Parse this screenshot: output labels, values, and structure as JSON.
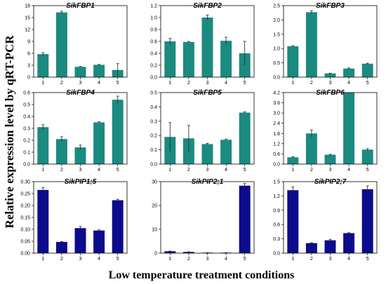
{
  "figure": {
    "ylabel": "Relative expression level by qRT-PCR",
    "xlabel": "Low temperature treatment conditions"
  },
  "colors": {
    "teal": "#1b8a80",
    "navy": "#0c0c8c",
    "error_bar": "#222222"
  },
  "chart_data": [
    {
      "type": "bar",
      "title": "SikFBP1",
      "categories": [
        "1",
        "2",
        "3",
        "4",
        "5"
      ],
      "values": [
        5.8,
        16.3,
        2.6,
        3.1,
        1.8
      ],
      "errors": [
        0.4,
        0.3,
        0.1,
        0.1,
        1.6
      ],
      "ylim": [
        0,
        18
      ],
      "yticks": [
        0,
        3,
        6,
        9,
        12,
        15,
        18
      ],
      "yticklabels": [
        "0",
        "3",
        "6",
        "9",
        "12",
        "15",
        "18"
      ],
      "color": "teal"
    },
    {
      "type": "bar",
      "title": "SikFBP2",
      "categories": [
        "1",
        "2",
        "3",
        "4",
        "5"
      ],
      "values": [
        0.6,
        0.59,
        1.0,
        0.61,
        0.4
      ],
      "errors": [
        0.05,
        0.01,
        0.04,
        0.06,
        0.2
      ],
      "ylim": [
        0,
        1.2
      ],
      "yticks": [
        0,
        0.2,
        0.4,
        0.6,
        0.8,
        1.0,
        1.2
      ],
      "yticklabels": [
        "0.0",
        "0.2",
        "0.4",
        "0.6",
        "0.8",
        "1.0",
        "1.2"
      ],
      "color": "teal"
    },
    {
      "type": "bar",
      "title": "SikFBP3",
      "categories": [
        "1",
        "2",
        "3",
        "4",
        "5"
      ],
      "values": [
        1.08,
        2.27,
        0.13,
        0.3,
        0.47
      ],
      "errors": [
        0.02,
        0.05,
        0.01,
        0.02,
        0.02
      ],
      "ylim": [
        0,
        2.5
      ],
      "yticks": [
        0,
        0.5,
        1.0,
        1.5,
        2.0,
        2.5
      ],
      "yticklabels": [
        "0.0",
        "0.5",
        "1.0",
        "1.5",
        "2.0",
        "2.5"
      ],
      "color": "teal"
    },
    {
      "type": "bar",
      "title": "SikFBP4",
      "categories": [
        "1",
        "2",
        "3",
        "4",
        "5"
      ],
      "values": [
        0.31,
        0.21,
        0.14,
        0.35,
        0.54
      ],
      "errors": [
        0.02,
        0.02,
        0.02,
        0.005,
        0.03
      ],
      "ylim": [
        0,
        0.6
      ],
      "yticks": [
        0,
        0.1,
        0.2,
        0.3,
        0.4,
        0.5,
        0.6
      ],
      "yticklabels": [
        "0.0",
        "0.1",
        "0.2",
        "0.3",
        "0.4",
        "0.5",
        "0.6"
      ],
      "color": "teal"
    },
    {
      "type": "bar",
      "title": "SikFBP5",
      "categories": [
        "1",
        "2",
        "3",
        "4",
        "5"
      ],
      "values": [
        0.19,
        0.18,
        0.14,
        0.17,
        0.36
      ],
      "errors": [
        0.1,
        0.09,
        0.005,
        0.005,
        0.005
      ],
      "ylim": [
        0,
        0.5
      ],
      "yticks": [
        0,
        0.1,
        0.2,
        0.3,
        0.4,
        0.5
      ],
      "yticklabels": [
        "0.0",
        "0.1",
        "0.2",
        "0.3",
        "0.4",
        "0.5"
      ],
      "color": "teal"
    },
    {
      "type": "bar",
      "title": "SikFBP6",
      "categories": [
        "1",
        "2",
        "3",
        "4",
        "5"
      ],
      "values": [
        0.4,
        1.8,
        0.55,
        4.2,
        0.85
      ],
      "errors": [
        0.04,
        0.2,
        0.02,
        0.0,
        0.06
      ],
      "ylim": [
        0,
        4.2
      ],
      "yticks": [
        0,
        0.6,
        1.2,
        1.8,
        2.4,
        3.0,
        3.6,
        4.2
      ],
      "yticklabels": [
        "0.0",
        "0.6",
        "1.2",
        "1.8",
        "2.4",
        "3.0",
        "3.6",
        "4.2"
      ],
      "color": "teal"
    },
    {
      "type": "bar",
      "title": "SikPIP1;5",
      "categories": [
        "1",
        "2",
        "3",
        "4",
        "5"
      ],
      "values": [
        0.265,
        0.047,
        0.105,
        0.095,
        0.222
      ],
      "errors": [
        0.01,
        0.002,
        0.007,
        0.003,
        0.004
      ],
      "ylim": [
        0,
        0.3
      ],
      "yticks": [
        0,
        0.05,
        0.1,
        0.15,
        0.2,
        0.25,
        0.3
      ],
      "yticklabels": [
        "0.00",
        "0.05",
        "0.10",
        "0.15",
        "0.20",
        "0.25",
        "0.30"
      ],
      "color": "navy"
    },
    {
      "type": "bar",
      "title": "SikPIP2;1",
      "categories": [
        "1",
        "2",
        "3",
        "4",
        "5"
      ],
      "values": [
        0.8,
        0.5,
        0.2,
        0.2,
        28.3
      ],
      "errors": [
        0.05,
        0.05,
        0.02,
        0.02,
        0.9
      ],
      "ylim": [
        0,
        30
      ],
      "yticks": [
        0,
        10,
        20,
        30
      ],
      "yticklabels": [
        "0",
        "10",
        "20",
        "30"
      ],
      "color": "navy"
    },
    {
      "type": "bar",
      "title": "SikPIP2;7",
      "categories": [
        "1",
        "2",
        "3",
        "4",
        "5"
      ],
      "values": [
        1.32,
        0.21,
        0.27,
        0.42,
        1.34
      ],
      "errors": [
        0.07,
        0.01,
        0.02,
        0.01,
        0.07
      ],
      "ylim": [
        0,
        1.5
      ],
      "yticks": [
        0,
        0.3,
        0.6,
        0.9,
        1.2,
        1.5
      ],
      "yticklabels": [
        "0.0",
        "0.3",
        "0.6",
        "0.9",
        "1.2",
        "1.5"
      ],
      "color": "navy"
    }
  ]
}
